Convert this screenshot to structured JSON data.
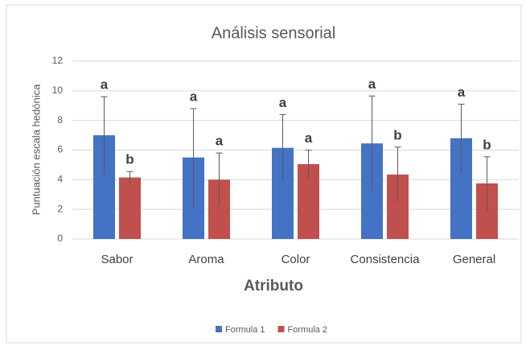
{
  "chart_data": {
    "type": "bar",
    "title": "Análisis sensorial",
    "x_label": "Atributo",
    "y_label": "Puntuación escala hedónica",
    "categories": [
      "Sabor",
      "Aroma",
      "Color",
      "Consistencia",
      "General"
    ],
    "series": [
      {
        "name": "Formula 1",
        "color": "#4472c4",
        "values": [
          7.0,
          5.5,
          6.15,
          6.45,
          6.8
        ],
        "errors": [
          2.6,
          3.3,
          2.25,
          3.2,
          2.3
        ],
        "letters": [
          "a",
          "a",
          "a",
          "a",
          "a"
        ]
      },
      {
        "name": "Formula 2",
        "color": "#c0504d",
        "values": [
          4.15,
          4.0,
          5.05,
          4.35,
          3.75
        ],
        "errors": [
          0.4,
          1.8,
          0.95,
          1.85,
          1.8
        ],
        "letters": [
          "b",
          "a",
          "a",
          "b",
          "b"
        ]
      }
    ],
    "ylim": [
      0,
      12
    ],
    "yticks": [
      0,
      2,
      4,
      6,
      8,
      10,
      12
    ],
    "grid": true,
    "legend": "bottom"
  }
}
